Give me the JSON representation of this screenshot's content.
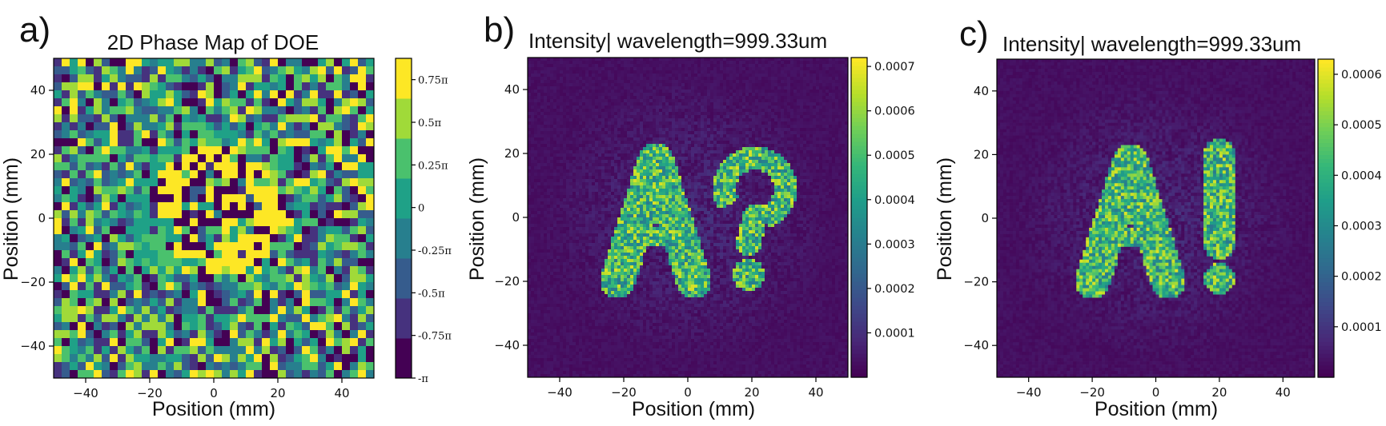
{
  "colors": {
    "viridis": [
      "#440154",
      "#482878",
      "#3e4989",
      "#31688e",
      "#26828e",
      "#1f9e89",
      "#35b779",
      "#6ece58",
      "#b5de2b",
      "#fde725"
    ]
  },
  "chart_data": [
    {
      "type": "heatmap",
      "panel": "a)",
      "title": "2D Phase Map of DOE",
      "xlabel": "Position (mm)",
      "ylabel": "Position (mm)",
      "xlim": [
        -50,
        50
      ],
      "ylim": [
        -50,
        50
      ],
      "xticks": [
        "-40",
        "-20",
        "0",
        "20",
        "40"
      ],
      "yticks": [
        "40",
        "20",
        "0",
        "-20",
        "-40"
      ],
      "grid_size": 40,
      "colormap": "viridis (discrete, 8 levels)",
      "colorbar_ticks": [
        "0.75π",
        "0.5π",
        "0.25π",
        "0",
        "-0.25π",
        "-0.5π",
        "-0.75π",
        "-π"
      ],
      "colorbar_range": [
        -3.1416,
        2.7489
      ],
      "pattern": "random quantized phase with a hidden ring-like structure around the centre"
    },
    {
      "type": "heatmap",
      "panel": "b)",
      "title": "Intensity| wavelength=999.33um",
      "xlabel": "Position (mm)",
      "ylabel": "Position (mm)",
      "xlim": [
        -50,
        50
      ],
      "ylim": [
        -50,
        50
      ],
      "xticks": [
        "-40",
        "-20",
        "0",
        "20",
        "40"
      ],
      "yticks": [
        "40",
        "20",
        "0",
        "-20",
        "-40"
      ],
      "grid_size": 100,
      "colormap": "viridis",
      "colorbar_ticks": [
        "0.0007",
        "0.0006",
        "0.0005",
        "0.0004",
        "0.0003",
        "0.0002",
        "0.0001"
      ],
      "colorbar_range": [
        0.0,
        0.00072
      ],
      "shape": "A?"
    },
    {
      "type": "heatmap",
      "panel": "c)",
      "title": "Intensity| wavelength=999.33um",
      "xlabel": "Position (mm)",
      "ylabel": "Position (mm)",
      "xlim": [
        -50,
        50
      ],
      "ylim": [
        -50,
        50
      ],
      "xticks": [
        "-40",
        "-20",
        "0",
        "20",
        "40"
      ],
      "yticks": [
        "40",
        "20",
        "0",
        "-20",
        "-40"
      ],
      "grid_size": 100,
      "colormap": "viridis",
      "colorbar_ticks": [
        "0.0006",
        "0.0005",
        "0.0004",
        "0.0003",
        "0.0002",
        "0.0001"
      ],
      "colorbar_range": [
        0.0,
        0.00063
      ],
      "shape": "A!"
    }
  ]
}
